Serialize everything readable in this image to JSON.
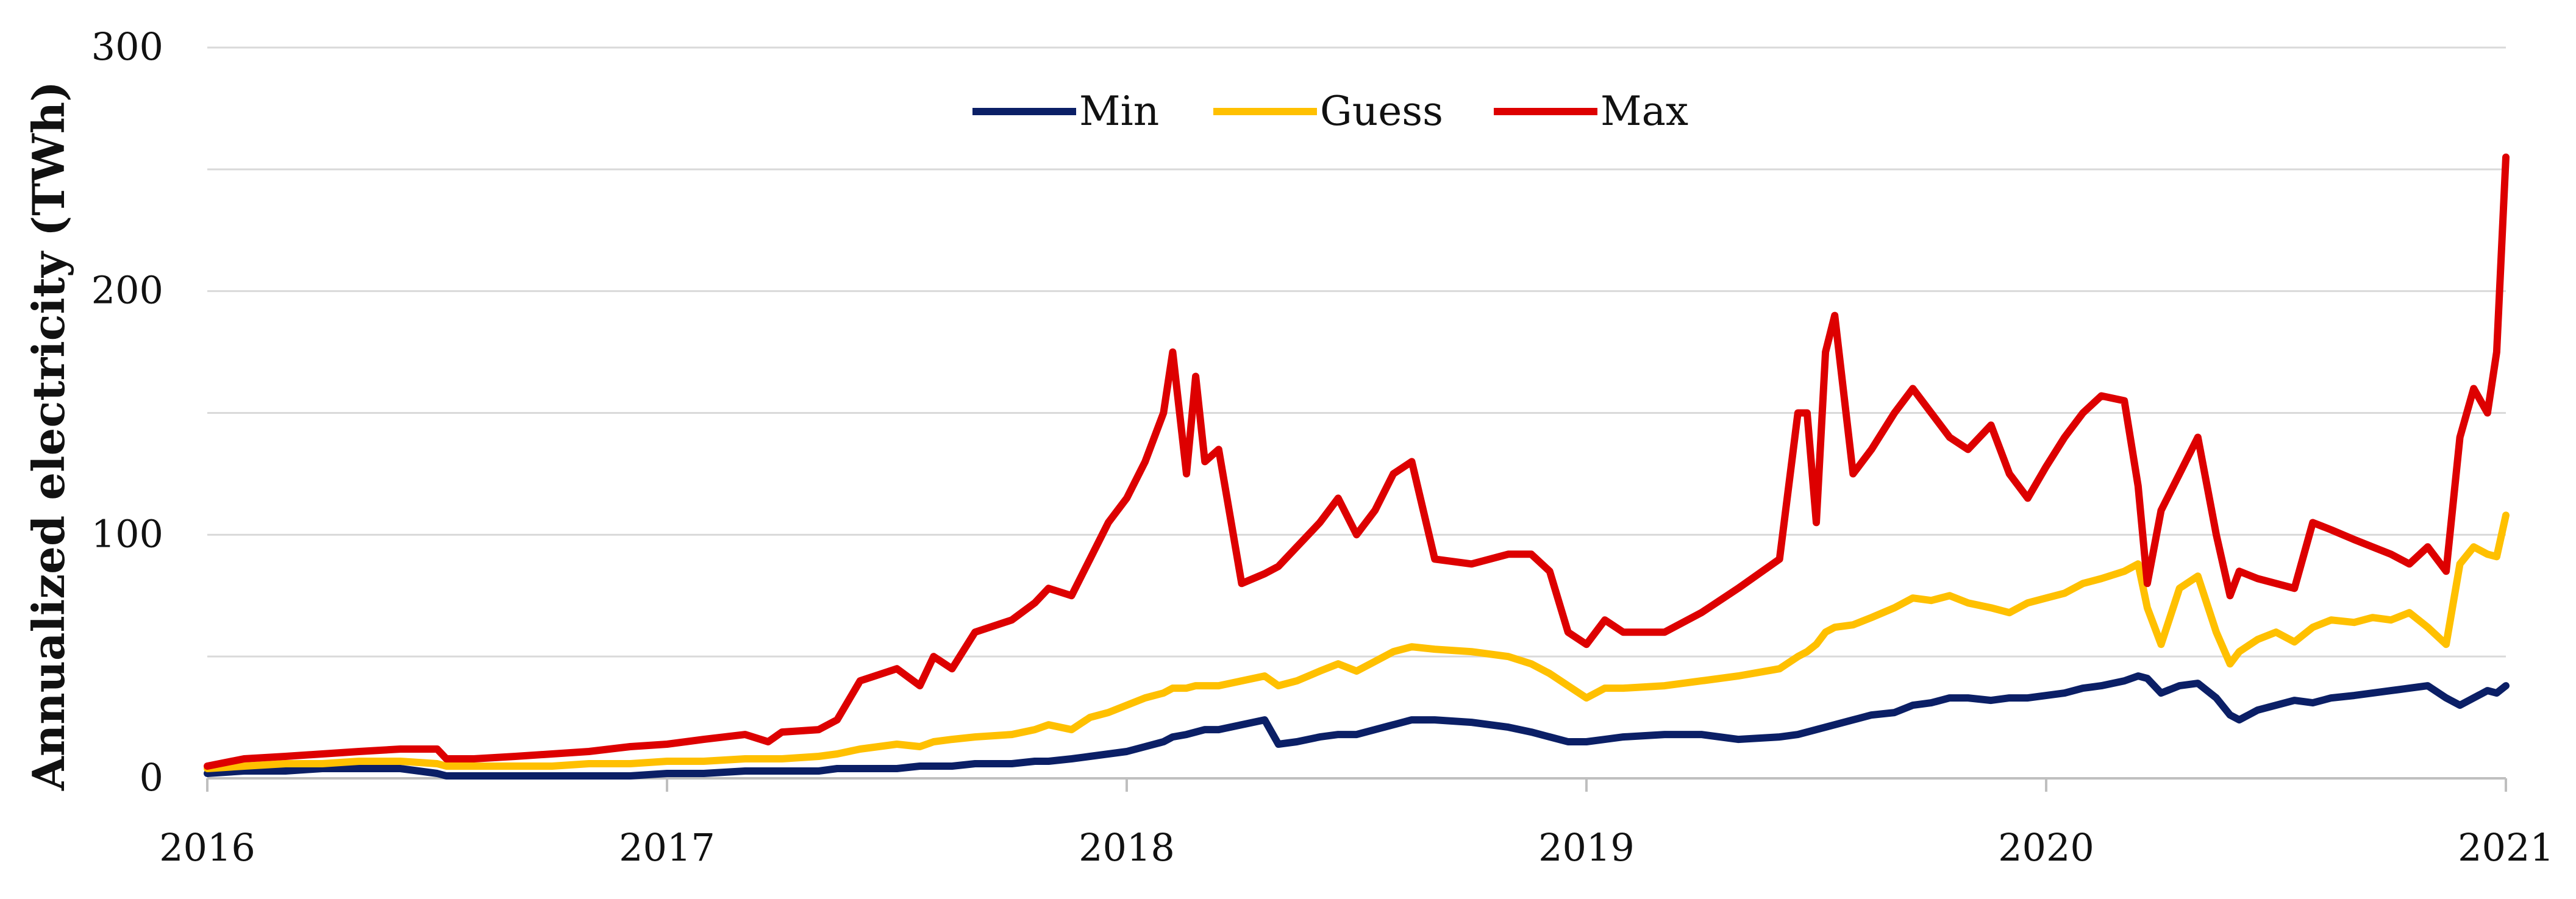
{
  "chart_data": {
    "type": "line",
    "title": "",
    "xlabel": "",
    "ylabel": "Annualized electricity  (TWh)",
    "xlim": [
      2016,
      2021
    ],
    "ylim": [
      0,
      300
    ],
    "x_ticks": [
      "2016",
      "2017",
      "2018",
      "2019",
      "2020",
      "2021"
    ],
    "y_ticks": [
      "0",
      "100",
      "200",
      "300"
    ],
    "grid": "horizontal",
    "legend_position": "top-center",
    "x": [
      2016.0,
      2016.08,
      2016.17,
      2016.25,
      2016.33,
      2016.42,
      2016.5,
      2016.52,
      2016.58,
      2016.67,
      2016.75,
      2016.83,
      2016.92,
      2017.0,
      2017.08,
      2017.17,
      2017.22,
      2017.25,
      2017.33,
      2017.37,
      2017.42,
      2017.5,
      2017.55,
      2017.58,
      2017.62,
      2017.67,
      2017.75,
      2017.8,
      2017.83,
      2017.88,
      2017.92,
      2017.96,
      2018.0,
      2018.04,
      2018.08,
      2018.1,
      2018.13,
      2018.15,
      2018.17,
      2018.2,
      2018.25,
      2018.3,
      2018.33,
      2018.37,
      2018.42,
      2018.46,
      2018.5,
      2018.54,
      2018.58,
      2018.62,
      2018.67,
      2018.75,
      2018.83,
      2018.88,
      2018.92,
      2018.96,
      2019.0,
      2019.04,
      2019.08,
      2019.17,
      2019.25,
      2019.33,
      2019.42,
      2019.46,
      2019.48,
      2019.5,
      2019.52,
      2019.54,
      2019.58,
      2019.62,
      2019.67,
      2019.71,
      2019.75,
      2019.79,
      2019.83,
      2019.88,
      2019.92,
      2019.96,
      2020.0,
      2020.04,
      2020.08,
      2020.12,
      2020.17,
      2020.2,
      2020.22,
      2020.25,
      2020.29,
      2020.33,
      2020.37,
      2020.4,
      2020.42,
      2020.46,
      2020.5,
      2020.54,
      2020.58,
      2020.62,
      2020.67,
      2020.71,
      2020.75,
      2020.79,
      2020.83,
      2020.87,
      2020.9,
      2020.93,
      2020.96,
      2020.98,
      2021.0
    ],
    "series": [
      {
        "name": "Min",
        "color": "#0b1f66",
        "values": [
          2,
          3,
          3,
          4,
          4,
          4,
          2,
          1,
          1,
          1,
          1,
          1,
          1,
          2,
          2,
          3,
          3,
          3,
          3,
          4,
          4,
          4,
          5,
          5,
          5,
          6,
          6,
          7,
          7,
          8,
          9,
          10,
          11,
          13,
          15,
          17,
          18,
          19,
          20,
          20,
          22,
          24,
          14,
          15,
          17,
          18,
          18,
          20,
          22,
          24,
          24,
          23,
          21,
          19,
          17,
          15,
          15,
          16,
          17,
          18,
          18,
          16,
          17,
          18,
          19,
          20,
          21,
          22,
          24,
          26,
          27,
          30,
          31,
          33,
          33,
          32,
          33,
          33,
          34,
          35,
          37,
          38,
          40,
          42,
          41,
          35,
          38,
          39,
          33,
          26,
          24,
          28,
          30,
          32,
          31,
          33,
          34,
          35,
          36,
          37,
          38,
          33,
          30,
          33,
          36,
          35,
          38
        ]
      },
      {
        "name": "Guess",
        "color": "#ffc000",
        "values": [
          4,
          5,
          6,
          6,
          7,
          7,
          6,
          5,
          5,
          5,
          5,
          6,
          6,
          7,
          7,
          8,
          8,
          8,
          9,
          10,
          12,
          14,
          13,
          15,
          16,
          17,
          18,
          20,
          22,
          20,
          25,
          27,
          30,
          33,
          35,
          37,
          37,
          38,
          38,
          38,
          40,
          42,
          38,
          40,
          44,
          47,
          44,
          48,
          52,
          54,
          53,
          52,
          50,
          47,
          43,
          38,
          33,
          37,
          37,
          38,
          40,
          42,
          45,
          50,
          52,
          55,
          60,
          62,
          63,
          66,
          70,
          74,
          73,
          75,
          72,
          70,
          68,
          72,
          74,
          76,
          80,
          82,
          85,
          88,
          70,
          55,
          78,
          83,
          60,
          47,
          52,
          57,
          60,
          56,
          62,
          65,
          64,
          66,
          65,
          68,
          62,
          55,
          88,
          95,
          92,
          91,
          108
        ]
      },
      {
        "name": "Max",
        "color": "#dd0000",
        "values": [
          5,
          8,
          9,
          10,
          11,
          12,
          12,
          8,
          8,
          9,
          10,
          11,
          13,
          14,
          16,
          18,
          15,
          19,
          20,
          24,
          40,
          45,
          38,
          50,
          45,
          60,
          65,
          72,
          78,
          75,
          90,
          105,
          115,
          130,
          150,
          175,
          125,
          165,
          130,
          135,
          80,
          84,
          87,
          95,
          105,
          115,
          100,
          110,
          125,
          130,
          90,
          88,
          92,
          92,
          85,
          60,
          55,
          65,
          60,
          60,
          68,
          78,
          90,
          150,
          150,
          105,
          175,
          190,
          125,
          135,
          150,
          160,
          150,
          140,
          135,
          145,
          125,
          115,
          128,
          140,
          150,
          157,
          155,
          120,
          80,
          110,
          125,
          140,
          100,
          75,
          85,
          82,
          80,
          78,
          105,
          102,
          98,
          95,
          92,
          88,
          95,
          85,
          140,
          160,
          150,
          175,
          255
        ]
      }
    ]
  }
}
